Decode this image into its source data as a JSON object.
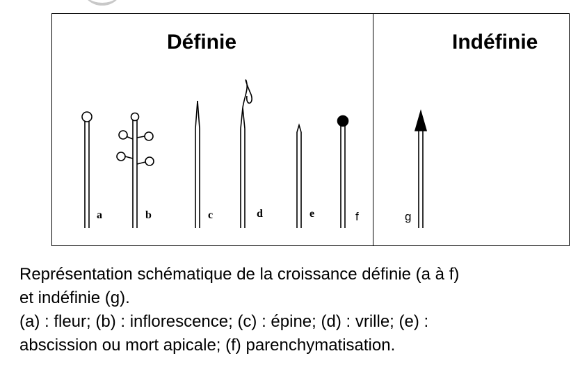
{
  "headings": {
    "defined": "Définie",
    "undefined": "Indéfinie"
  },
  "panel_labels": {
    "a": "a",
    "b": "b",
    "c": "c",
    "d": "d",
    "e": "e",
    "f": "f",
    "g": "g"
  },
  "caption": {
    "line1": "Représentation schématique de la croissance définie (a à f)",
    "line2": "et indéfinie (g).",
    "line3": "(a) : fleur; (b) : inflorescence; (c) : épine; (d) : vrille; (e) :",
    "line4": "abscission  ou mort apicale; (f) parenchymatisation."
  },
  "colors": {
    "ink": "#000000",
    "background": "#ffffff"
  }
}
